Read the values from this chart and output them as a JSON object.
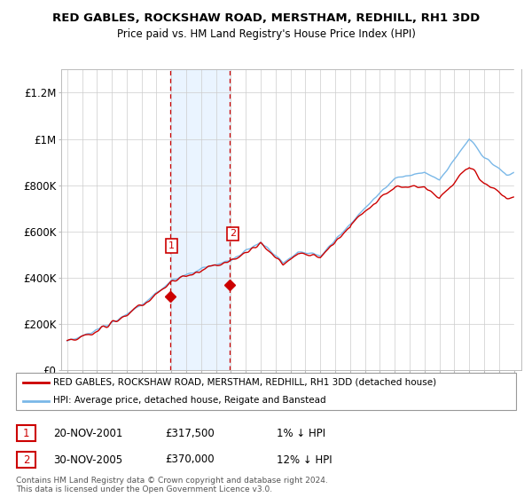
{
  "title": "RED GABLES, ROCKSHAW ROAD, MERSTHAM, REDHILL, RH1 3DD",
  "subtitle": "Price paid vs. HM Land Registry's House Price Index (HPI)",
  "ylim": [
    0,
    1300000
  ],
  "yticks": [
    0,
    200000,
    400000,
    600000,
    800000,
    1000000,
    1200000
  ],
  "ytick_labels": [
    "£0",
    "£200K",
    "£400K",
    "£600K",
    "£800K",
    "£1M",
    "£1.2M"
  ],
  "sale1_date": 2001.917,
  "sale1_price": 317500,
  "sale1_label": "1",
  "sale1_text": "20-NOV-2001",
  "sale1_price_text": "£317,500",
  "sale1_hpi_text": "1% ↓ HPI",
  "sale2_date": 2005.917,
  "sale2_price": 370000,
  "sale2_label": "2",
  "sale2_text": "30-NOV-2005",
  "sale2_price_text": "£370,000",
  "sale2_hpi_text": "12% ↓ HPI",
  "hpi_color": "#7ab8e8",
  "price_color": "#cc0000",
  "legend_house": "RED GABLES, ROCKSHAW ROAD, MERSTHAM, REDHILL, RH1 3DD (detached house)",
  "legend_hpi": "HPI: Average price, detached house, Reigate and Banstead",
  "footnote1": "Contains HM Land Registry data © Crown copyright and database right 2024.",
  "footnote2": "This data is licensed under the Open Government Licence v3.0.",
  "bg_shade_color": "#ddeeff",
  "vline_color": "#cc0000",
  "xstart": 1995,
  "xend": 2025
}
